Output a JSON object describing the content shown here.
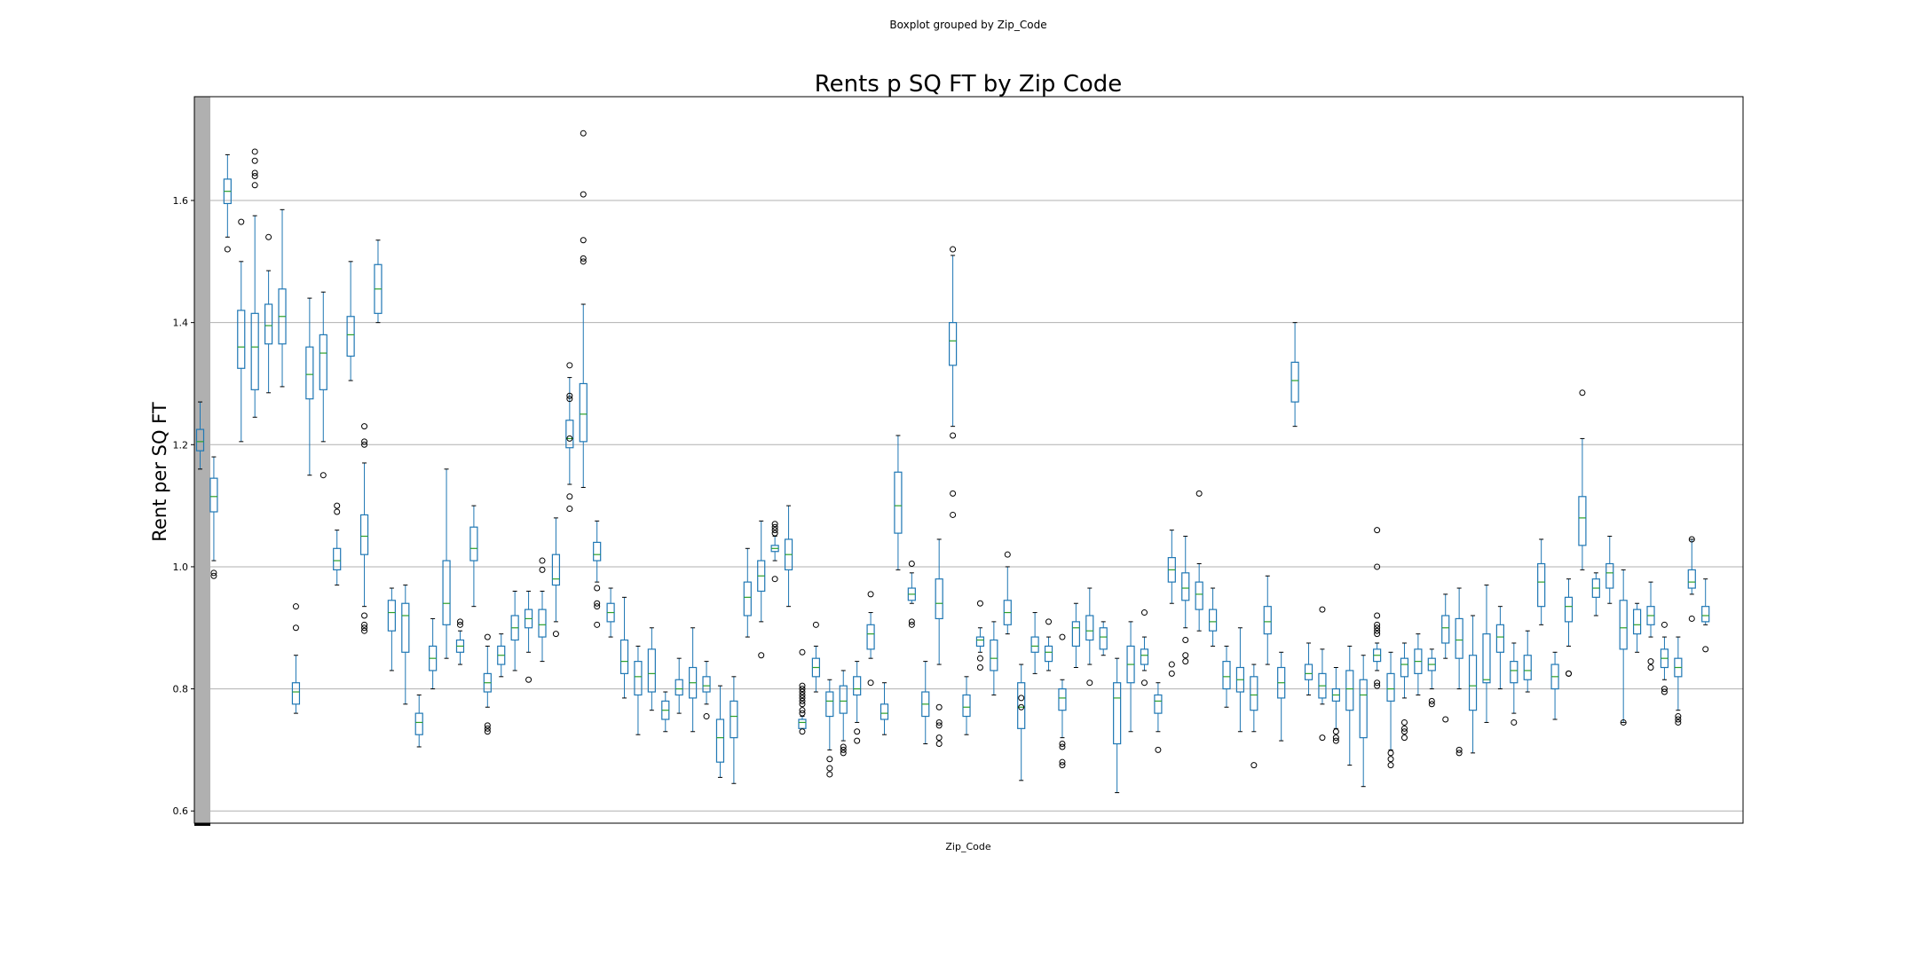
{
  "suptitle": "Boxplot grouped by Zip_Code",
  "chart_data": {
    "type": "box",
    "title": "Rents p SQ FT by Zip Code",
    "xlabel": "Zip_Code",
    "ylabel": "Rent per SQ FT",
    "ylim": [
      0.58,
      1.77
    ],
    "yticks": [
      0.6,
      0.8,
      1.0,
      1.2,
      1.4,
      1.6
    ],
    "ytick_labels": [
      "0.6",
      "0.8",
      "1.0",
      "1.2",
      "1.4",
      "1.6"
    ],
    "grid": "horizontal",
    "box_color": "#1f77b4",
    "median_color": "#2ca02c",
    "boxes": [
      {
        "low": 1.16,
        "q1": 1.19,
        "med": 1.205,
        "q3": 1.225,
        "high": 1.27,
        "fliers": []
      },
      {
        "low": 1.01,
        "q1": 1.09,
        "med": 1.115,
        "q3": 1.145,
        "high": 1.18,
        "fliers": [
          0.99,
          0.985
        ]
      },
      {
        "low": 1.54,
        "q1": 1.595,
        "med": 1.615,
        "q3": 1.635,
        "high": 1.675,
        "fliers": [
          1.52
        ]
      },
      {
        "low": 1.205,
        "q1": 1.325,
        "med": 1.36,
        "q3": 1.42,
        "high": 1.5,
        "fliers": [
          1.565
        ]
      },
      {
        "low": 1.245,
        "q1": 1.29,
        "med": 1.36,
        "q3": 1.415,
        "high": 1.575,
        "fliers": [
          1.68,
          1.665,
          1.645,
          1.64,
          1.625
        ]
      },
      {
        "low": 1.285,
        "q1": 1.365,
        "med": 1.395,
        "q3": 1.43,
        "high": 1.485,
        "fliers": [
          1.54
        ]
      },
      {
        "low": 1.295,
        "q1": 1.365,
        "med": 1.41,
        "q3": 1.455,
        "high": 1.585,
        "fliers": []
      },
      {
        "low": 0.76,
        "q1": 0.775,
        "med": 0.795,
        "q3": 0.81,
        "high": 0.855,
        "fliers": [
          0.935,
          0.9
        ]
      },
      {
        "low": 1.15,
        "q1": 1.275,
        "med": 1.315,
        "q3": 1.36,
        "high": 1.44,
        "fliers": []
      },
      {
        "low": 1.205,
        "q1": 1.29,
        "med": 1.35,
        "q3": 1.38,
        "high": 1.45,
        "fliers": [
          1.15
        ]
      },
      {
        "low": 0.97,
        "q1": 0.995,
        "med": 1.01,
        "q3": 1.03,
        "high": 1.06,
        "fliers": [
          1.1,
          1.09
        ]
      },
      {
        "low": 1.305,
        "q1": 1.345,
        "med": 1.38,
        "q3": 1.41,
        "high": 1.5,
        "fliers": []
      },
      {
        "low": 0.935,
        "q1": 1.02,
        "med": 1.05,
        "q3": 1.085,
        "high": 1.17,
        "fliers": [
          1.23,
          1.205,
          1.2,
          0.92,
          0.905,
          0.9,
          0.895
        ]
      },
      {
        "low": 1.4,
        "q1": 1.415,
        "med": 1.455,
        "q3": 1.495,
        "high": 1.535,
        "fliers": []
      },
      {
        "low": 0.83,
        "q1": 0.895,
        "med": 0.925,
        "q3": 0.945,
        "high": 0.965,
        "fliers": []
      },
      {
        "low": 0.775,
        "q1": 0.86,
        "med": 0.92,
        "q3": 0.94,
        "high": 0.97,
        "fliers": []
      },
      {
        "low": 0.705,
        "q1": 0.725,
        "med": 0.745,
        "q3": 0.76,
        "high": 0.79,
        "fliers": []
      },
      {
        "low": 0.8,
        "q1": 0.83,
        "med": 0.85,
        "q3": 0.87,
        "high": 0.915,
        "fliers": []
      },
      {
        "low": 0.85,
        "q1": 0.905,
        "med": 0.94,
        "q3": 1.01,
        "high": 1.16,
        "fliers": []
      },
      {
        "low": 0.84,
        "q1": 0.86,
        "med": 0.87,
        "q3": 0.88,
        "high": 0.895,
        "fliers": [
          0.91,
          0.905
        ]
      },
      {
        "low": 0.935,
        "q1": 1.01,
        "med": 1.03,
        "q3": 1.065,
        "high": 1.1,
        "fliers": []
      },
      {
        "low": 0.77,
        "q1": 0.795,
        "med": 0.81,
        "q3": 0.825,
        "high": 0.87,
        "fliers": [
          0.885,
          0.74,
          0.735,
          0.73
        ]
      },
      {
        "low": 0.82,
        "q1": 0.84,
        "med": 0.855,
        "q3": 0.87,
        "high": 0.89,
        "fliers": []
      },
      {
        "low": 0.83,
        "q1": 0.88,
        "med": 0.9,
        "q3": 0.92,
        "high": 0.96,
        "fliers": []
      },
      {
        "low": 0.86,
        "q1": 0.9,
        "med": 0.915,
        "q3": 0.93,
        "high": 0.96,
        "fliers": [
          0.815
        ]
      },
      {
        "low": 0.845,
        "q1": 0.885,
        "med": 0.905,
        "q3": 0.93,
        "high": 0.96,
        "fliers": [
          1.01,
          0.995
        ]
      },
      {
        "low": 0.91,
        "q1": 0.97,
        "med": 0.98,
        "q3": 1.02,
        "high": 1.08,
        "fliers": [
          0.89
        ]
      },
      {
        "low": 1.135,
        "q1": 1.195,
        "med": 1.21,
        "q3": 1.24,
        "high": 1.31,
        "fliers": [
          1.33,
          1.28,
          1.275,
          1.21,
          1.115,
          1.095
        ]
      },
      {
        "low": 1.13,
        "q1": 1.205,
        "med": 1.25,
        "q3": 1.3,
        "high": 1.43,
        "fliers": [
          1.71,
          1.61,
          1.535,
          1.505,
          1.5
        ]
      },
      {
        "low": 0.975,
        "q1": 1.01,
        "med": 1.02,
        "q3": 1.04,
        "high": 1.075,
        "fliers": [
          0.965,
          0.94,
          0.935,
          0.905
        ]
      },
      {
        "low": 0.885,
        "q1": 0.91,
        "med": 0.925,
        "q3": 0.94,
        "high": 0.965,
        "fliers": []
      },
      {
        "low": 0.785,
        "q1": 0.825,
        "med": 0.845,
        "q3": 0.88,
        "high": 0.95,
        "fliers": []
      },
      {
        "low": 0.725,
        "q1": 0.79,
        "med": 0.82,
        "q3": 0.845,
        "high": 0.87,
        "fliers": []
      },
      {
        "low": 0.765,
        "q1": 0.795,
        "med": 0.825,
        "q3": 0.865,
        "high": 0.9,
        "fliers": []
      },
      {
        "low": 0.73,
        "q1": 0.75,
        "med": 0.765,
        "q3": 0.78,
        "high": 0.795,
        "fliers": []
      },
      {
        "low": 0.76,
        "q1": 0.79,
        "med": 0.8,
        "q3": 0.815,
        "high": 0.85,
        "fliers": []
      },
      {
        "low": 0.73,
        "q1": 0.785,
        "med": 0.81,
        "q3": 0.835,
        "high": 0.9,
        "fliers": []
      },
      {
        "low": 0.775,
        "q1": 0.795,
        "med": 0.805,
        "q3": 0.82,
        "high": 0.845,
        "fliers": [
          0.755
        ]
      },
      {
        "low": 0.655,
        "q1": 0.68,
        "med": 0.72,
        "q3": 0.75,
        "high": 0.805,
        "fliers": []
      },
      {
        "low": 0.645,
        "q1": 0.72,
        "med": 0.755,
        "q3": 0.78,
        "high": 0.82,
        "fliers": []
      },
      {
        "low": 0.885,
        "q1": 0.92,
        "med": 0.95,
        "q3": 0.975,
        "high": 1.03,
        "fliers": []
      },
      {
        "low": 0.91,
        "q1": 0.96,
        "med": 0.985,
        "q3": 1.01,
        "high": 1.075,
        "fliers": [
          0.855
        ]
      },
      {
        "low": 1.01,
        "q1": 1.025,
        "med": 1.03,
        "q3": 1.035,
        "high": 1.05,
        "fliers": [
          1.07,
          1.065,
          1.06,
          1.055,
          0.98
        ]
      },
      {
        "low": 0.935,
        "q1": 0.995,
        "med": 1.02,
        "q3": 1.045,
        "high": 1.1,
        "fliers": []
      },
      {
        "low": 0.735,
        "q1": 0.735,
        "med": 0.745,
        "q3": 0.75,
        "high": 0.755,
        "fliers": [
          0.86,
          0.805,
          0.8,
          0.795,
          0.79,
          0.785,
          0.78,
          0.775,
          0.765,
          0.76,
          0.73
        ]
      },
      {
        "low": 0.795,
        "q1": 0.82,
        "med": 0.835,
        "q3": 0.85,
        "high": 0.87,
        "fliers": [
          0.905
        ]
      },
      {
        "low": 0.7,
        "q1": 0.755,
        "med": 0.78,
        "q3": 0.795,
        "high": 0.815,
        "fliers": [
          0.685,
          0.67,
          0.66
        ]
      },
      {
        "low": 0.715,
        "q1": 0.76,
        "med": 0.78,
        "q3": 0.805,
        "high": 0.83,
        "fliers": [
          0.705,
          0.7,
          0.695
        ]
      },
      {
        "low": 0.745,
        "q1": 0.79,
        "med": 0.8,
        "q3": 0.82,
        "high": 0.845,
        "fliers": [
          0.73,
          0.715
        ]
      },
      {
        "low": 0.85,
        "q1": 0.865,
        "med": 0.89,
        "q3": 0.905,
        "high": 0.925,
        "fliers": [
          0.955,
          0.81
        ]
      },
      {
        "low": 0.725,
        "q1": 0.75,
        "med": 0.76,
        "q3": 0.775,
        "high": 0.81,
        "fliers": []
      },
      {
        "low": 0.995,
        "q1": 1.055,
        "med": 1.1,
        "q3": 1.155,
        "high": 1.215,
        "fliers": []
      },
      {
        "low": 0.94,
        "q1": 0.945,
        "med": 0.955,
        "q3": 0.965,
        "high": 0.99,
        "fliers": [
          1.005,
          0.91,
          0.905
        ]
      },
      {
        "low": 0.71,
        "q1": 0.755,
        "med": 0.775,
        "q3": 0.795,
        "high": 0.845,
        "fliers": []
      },
      {
        "low": 0.84,
        "q1": 0.915,
        "med": 0.94,
        "q3": 0.98,
        "high": 1.045,
        "fliers": [
          0.77,
          0.745,
          0.74,
          0.72,
          0.71
        ]
      },
      {
        "low": 1.23,
        "q1": 1.33,
        "med": 1.37,
        "q3": 1.4,
        "high": 1.51,
        "fliers": [
          1.52,
          1.215,
          1.12,
          1.085
        ]
      },
      {
        "low": 0.725,
        "q1": 0.755,
        "med": 0.77,
        "q3": 0.79,
        "high": 0.82,
        "fliers": []
      },
      {
        "low": 0.86,
        "q1": 0.87,
        "med": 0.88,
        "q3": 0.885,
        "high": 0.9,
        "fliers": [
          0.94,
          0.85,
          0.835
        ]
      },
      {
        "low": 0.79,
        "q1": 0.83,
        "med": 0.85,
        "q3": 0.88,
        "high": 0.91,
        "fliers": []
      },
      {
        "low": 0.89,
        "q1": 0.905,
        "med": 0.925,
        "q3": 0.945,
        "high": 1.0,
        "fliers": [
          1.02
        ]
      },
      {
        "low": 0.65,
        "q1": 0.735,
        "med": 0.77,
        "q3": 0.81,
        "high": 0.84,
        "fliers": [
          0.785,
          0.77
        ]
      },
      {
        "low": 0.825,
        "q1": 0.86,
        "med": 0.87,
        "q3": 0.885,
        "high": 0.925,
        "fliers": []
      },
      {
        "low": 0.83,
        "q1": 0.845,
        "med": 0.86,
        "q3": 0.87,
        "high": 0.885,
        "fliers": [
          0.91
        ]
      },
      {
        "low": 0.72,
        "q1": 0.765,
        "med": 0.785,
        "q3": 0.8,
        "high": 0.815,
        "fliers": [
          0.885,
          0.71,
          0.705,
          0.68,
          0.675
        ]
      },
      {
        "low": 0.835,
        "q1": 0.87,
        "med": 0.9,
        "q3": 0.91,
        "high": 0.94,
        "fliers": []
      },
      {
        "low": 0.84,
        "q1": 0.88,
        "med": 0.895,
        "q3": 0.92,
        "high": 0.965,
        "fliers": [
          0.81
        ]
      },
      {
        "low": 0.855,
        "q1": 0.865,
        "med": 0.885,
        "q3": 0.9,
        "high": 0.91,
        "fliers": []
      },
      {
        "low": 0.63,
        "q1": 0.71,
        "med": 0.785,
        "q3": 0.81,
        "high": 0.85,
        "fliers": []
      },
      {
        "low": 0.73,
        "q1": 0.81,
        "med": 0.84,
        "q3": 0.87,
        "high": 0.91,
        "fliers": []
      },
      {
        "low": 0.83,
        "q1": 0.84,
        "med": 0.855,
        "q3": 0.865,
        "high": 0.885,
        "fliers": [
          0.925,
          0.81
        ]
      },
      {
        "low": 0.73,
        "q1": 0.76,
        "med": 0.78,
        "q3": 0.79,
        "high": 0.81,
        "fliers": [
          0.7
        ]
      },
      {
        "low": 0.94,
        "q1": 0.975,
        "med": 0.995,
        "q3": 1.015,
        "high": 1.06,
        "fliers": [
          0.84,
          0.825
        ]
      },
      {
        "low": 0.9,
        "q1": 0.945,
        "med": 0.965,
        "q3": 0.99,
        "high": 1.05,
        "fliers": [
          0.88,
          0.855,
          0.845
        ]
      },
      {
        "low": 0.895,
        "q1": 0.93,
        "med": 0.955,
        "q3": 0.975,
        "high": 1.005,
        "fliers": [
          1.12
        ]
      },
      {
        "low": 0.87,
        "q1": 0.895,
        "med": 0.91,
        "q3": 0.93,
        "high": 0.965,
        "fliers": []
      },
      {
        "low": 0.77,
        "q1": 0.8,
        "med": 0.82,
        "q3": 0.845,
        "high": 0.87,
        "fliers": []
      },
      {
        "low": 0.73,
        "q1": 0.795,
        "med": 0.815,
        "q3": 0.835,
        "high": 0.9,
        "fliers": []
      },
      {
        "low": 0.73,
        "q1": 0.765,
        "med": 0.79,
        "q3": 0.82,
        "high": 0.84,
        "fliers": [
          0.675
        ]
      },
      {
        "low": 0.84,
        "q1": 0.89,
        "med": 0.91,
        "q3": 0.935,
        "high": 0.985,
        "fliers": []
      },
      {
        "low": 0.715,
        "q1": 0.785,
        "med": 0.81,
        "q3": 0.835,
        "high": 0.86,
        "fliers": []
      },
      {
        "low": 1.23,
        "q1": 1.27,
        "med": 1.305,
        "q3": 1.335,
        "high": 1.4,
        "fliers": []
      },
      {
        "low": 0.79,
        "q1": 0.815,
        "med": 0.825,
        "q3": 0.84,
        "high": 0.875,
        "fliers": []
      },
      {
        "low": 0.775,
        "q1": 0.785,
        "med": 0.805,
        "q3": 0.825,
        "high": 0.865,
        "fliers": [
          0.93,
          0.72
        ]
      },
      {
        "low": 0.735,
        "q1": 0.78,
        "med": 0.79,
        "q3": 0.8,
        "high": 0.835,
        "fliers": [
          0.73,
          0.72,
          0.715
        ]
      },
      {
        "low": 0.675,
        "q1": 0.765,
        "med": 0.8,
        "q3": 0.83,
        "high": 0.87,
        "fliers": []
      },
      {
        "low": 0.64,
        "q1": 0.72,
        "med": 0.79,
        "q3": 0.815,
        "high": 0.855,
        "fliers": []
      },
      {
        "low": 0.83,
        "q1": 0.845,
        "med": 0.855,
        "q3": 0.865,
        "high": 0.875,
        "fliers": [
          1.06,
          1.0,
          0.92,
          0.905,
          0.9,
          0.895,
          0.89,
          0.81,
          0.805
        ]
      },
      {
        "low": 0.7,
        "q1": 0.78,
        "med": 0.8,
        "q3": 0.825,
        "high": 0.86,
        "fliers": [
          0.695,
          0.685,
          0.675
        ]
      },
      {
        "low": 0.785,
        "q1": 0.82,
        "med": 0.84,
        "q3": 0.85,
        "high": 0.875,
        "fliers": [
          0.745,
          0.735,
          0.73,
          0.72
        ]
      },
      {
        "low": 0.79,
        "q1": 0.825,
        "med": 0.845,
        "q3": 0.865,
        "high": 0.89,
        "fliers": []
      },
      {
        "low": 0.8,
        "q1": 0.83,
        "med": 0.84,
        "q3": 0.85,
        "high": 0.865,
        "fliers": [
          0.78,
          0.775
        ]
      },
      {
        "low": 0.85,
        "q1": 0.875,
        "med": 0.9,
        "q3": 0.92,
        "high": 0.955,
        "fliers": [
          0.75
        ]
      },
      {
        "low": 0.8,
        "q1": 0.85,
        "med": 0.88,
        "q3": 0.915,
        "high": 0.965,
        "fliers": [
          0.7,
          0.695
        ]
      },
      {
        "low": 0.695,
        "q1": 0.765,
        "med": 0.805,
        "q3": 0.855,
        "high": 0.92,
        "fliers": []
      },
      {
        "low": 0.745,
        "q1": 0.81,
        "med": 0.815,
        "q3": 0.89,
        "high": 0.97,
        "fliers": []
      },
      {
        "low": 0.8,
        "q1": 0.86,
        "med": 0.885,
        "q3": 0.905,
        "high": 0.935,
        "fliers": []
      },
      {
        "low": 0.76,
        "q1": 0.81,
        "med": 0.83,
        "q3": 0.845,
        "high": 0.875,
        "fliers": [
          0.745
        ]
      },
      {
        "low": 0.795,
        "q1": 0.815,
        "med": 0.83,
        "q3": 0.855,
        "high": 0.895,
        "fliers": []
      },
      {
        "low": 0.905,
        "q1": 0.935,
        "med": 0.975,
        "q3": 1.005,
        "high": 1.045,
        "fliers": []
      },
      {
        "low": 0.75,
        "q1": 0.8,
        "med": 0.82,
        "q3": 0.84,
        "high": 0.86,
        "fliers": []
      },
      {
        "low": 0.87,
        "q1": 0.91,
        "med": 0.935,
        "q3": 0.95,
        "high": 0.98,
        "fliers": [
          0.825,
          0.825
        ]
      },
      {
        "low": 0.995,
        "q1": 1.035,
        "med": 1.08,
        "q3": 1.115,
        "high": 1.21,
        "fliers": [
          1.285
        ]
      },
      {
        "low": 0.92,
        "q1": 0.95,
        "med": 0.965,
        "q3": 0.98,
        "high": 0.99,
        "fliers": []
      },
      {
        "low": 0.94,
        "q1": 0.965,
        "med": 0.99,
        "q3": 1.005,
        "high": 1.05,
        "fliers": []
      },
      {
        "low": 0.745,
        "q1": 0.865,
        "med": 0.9,
        "q3": 0.945,
        "high": 0.995,
        "fliers": [
          0.745
        ]
      },
      {
        "low": 0.86,
        "q1": 0.89,
        "med": 0.905,
        "q3": 0.93,
        "high": 0.94,
        "fliers": []
      },
      {
        "low": 0.885,
        "q1": 0.905,
        "med": 0.92,
        "q3": 0.935,
        "high": 0.975,
        "fliers": [
          0.845,
          0.835
        ]
      },
      {
        "low": 0.815,
        "q1": 0.835,
        "med": 0.85,
        "q3": 0.865,
        "high": 0.885,
        "fliers": [
          0.905,
          0.8,
          0.795
        ]
      },
      {
        "low": 0.765,
        "q1": 0.82,
        "med": 0.835,
        "q3": 0.85,
        "high": 0.885,
        "fliers": [
          0.755,
          0.75,
          0.745
        ]
      },
      {
        "low": 0.955,
        "q1": 0.965,
        "med": 0.975,
        "q3": 0.995,
        "high": 1.045,
        "fliers": [
          1.045,
          0.915
        ]
      },
      {
        "low": 0.905,
        "q1": 0.91,
        "med": 0.92,
        "q3": 0.935,
        "high": 0.98,
        "fliers": [
          0.865
        ]
      }
    ]
  }
}
